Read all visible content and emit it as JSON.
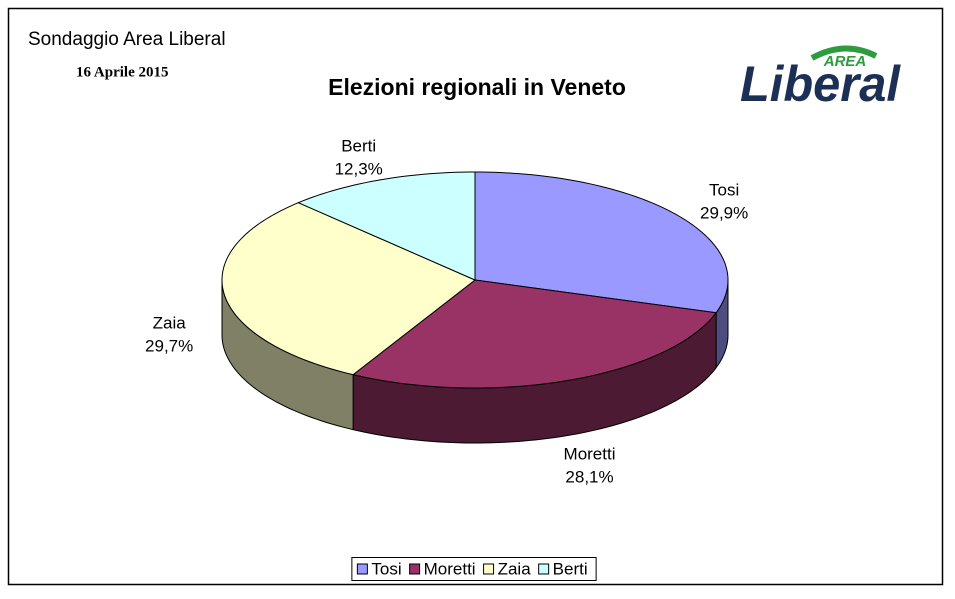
{
  "chart_data": {
    "type": "pie3d",
    "title": "Elezioni regionali in Veneto",
    "annotations": [
      "Sondaggio Area Liberal",
      "16 Aprile 2015"
    ],
    "logo": {
      "top": "AREA",
      "main": "Liberal"
    },
    "categories": [
      "Tosi",
      "Moretti",
      "Zaia",
      "Berti"
    ],
    "values": [
      29.9,
      28.1,
      29.7,
      12.3
    ],
    "value_labels": [
      "29,9%",
      "28,1%",
      "29,7%",
      "12,3%"
    ],
    "colors": [
      "#9999ff",
      "#993366",
      "#ffffcc",
      "#ccffff"
    ],
    "legend": "bottom"
  }
}
